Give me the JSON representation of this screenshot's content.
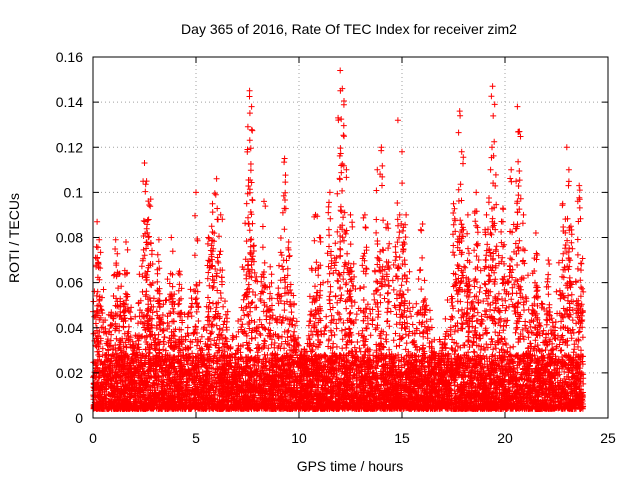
{
  "chart_data": {
    "type": "scatter",
    "title": "Day 365 of 2016, Rate Of TEC Index for receiver zim2",
    "xlabel": "GPS time / hours",
    "ylabel": "ROTI / TECUs",
    "xlim": [
      0,
      25
    ],
    "ylim": [
      0,
      0.16
    ],
    "x_ticks": [
      0,
      5,
      10,
      15,
      20,
      25
    ],
    "x_tick_labels": [
      "0",
      "5",
      "10",
      "15",
      "20",
      "25"
    ],
    "y_ticks": [
      0,
      0.02,
      0.04,
      0.06,
      0.08,
      0.1,
      0.12,
      0.14,
      0.16
    ],
    "y_tick_labels": [
      "0",
      "0.02",
      "0.04",
      "0.06",
      "0.08",
      "0.1",
      "0.12",
      "0.14",
      "0.16"
    ],
    "grid": true,
    "marker": "+",
    "color": "#ff0000",
    "data_x_range": [
      0,
      23.8
    ],
    "series": [
      {
        "name": "ROTI",
        "description_of_points": "dense cloud of ROTI samples, mostly 0.005-0.03 TECU/min, with spikes",
        "spikes": [
          {
            "x": 0.2,
            "y": 0.087
          },
          {
            "x": 0.3,
            "y": 0.079
          },
          {
            "x": 1.1,
            "y": 0.079
          },
          {
            "x": 1.3,
            "y": 0.064
          },
          {
            "x": 1.6,
            "y": 0.078
          },
          {
            "x": 2.5,
            "y": 0.113
          },
          {
            "x": 2.6,
            "y": 0.105
          },
          {
            "x": 2.7,
            "y": 0.088
          },
          {
            "x": 2.8,
            "y": 0.097
          },
          {
            "x": 3.2,
            "y": 0.079
          },
          {
            "x": 3.8,
            "y": 0.08
          },
          {
            "x": 4.2,
            "y": 0.065
          },
          {
            "x": 5.0,
            "y": 0.1
          },
          {
            "x": 5.6,
            "y": 0.08
          },
          {
            "x": 5.8,
            "y": 0.095
          },
          {
            "x": 6.0,
            "y": 0.106
          },
          {
            "x": 6.2,
            "y": 0.09
          },
          {
            "x": 7.5,
            "y": 0.119
          },
          {
            "x": 7.6,
            "y": 0.145
          },
          {
            "x": 7.7,
            "y": 0.138
          },
          {
            "x": 8.3,
            "y": 0.096
          },
          {
            "x": 8.6,
            "y": 0.067
          },
          {
            "x": 9.3,
            "y": 0.115
          },
          {
            "x": 9.5,
            "y": 0.078
          },
          {
            "x": 10.8,
            "y": 0.09
          },
          {
            "x": 11.0,
            "y": 0.08
          },
          {
            "x": 11.5,
            "y": 0.1
          },
          {
            "x": 11.9,
            "y": 0.133
          },
          {
            "x": 12.0,
            "y": 0.154
          },
          {
            "x": 12.1,
            "y": 0.146
          },
          {
            "x": 12.3,
            "y": 0.11
          },
          {
            "x": 12.5,
            "y": 0.09
          },
          {
            "x": 13.2,
            "y": 0.09
          },
          {
            "x": 13.8,
            "y": 0.11
          },
          {
            "x": 14.0,
            "y": 0.12
          },
          {
            "x": 14.3,
            "y": 0.086
          },
          {
            "x": 14.8,
            "y": 0.132
          },
          {
            "x": 15.0,
            "y": 0.118
          },
          {
            "x": 15.2,
            "y": 0.09
          },
          {
            "x": 16.0,
            "y": 0.086
          },
          {
            "x": 17.5,
            "y": 0.095
          },
          {
            "x": 17.8,
            "y": 0.136
          },
          {
            "x": 17.9,
            "y": 0.118
          },
          {
            "x": 18.2,
            "y": 0.09
          },
          {
            "x": 18.6,
            "y": 0.1
          },
          {
            "x": 19.1,
            "y": 0.09
          },
          {
            "x": 19.3,
            "y": 0.11
          },
          {
            "x": 19.4,
            "y": 0.147
          },
          {
            "x": 19.5,
            "y": 0.139
          },
          {
            "x": 19.9,
            "y": 0.093
          },
          {
            "x": 20.3,
            "y": 0.11
          },
          {
            "x": 20.6,
            "y": 0.138
          },
          {
            "x": 20.7,
            "y": 0.127
          },
          {
            "x": 20.9,
            "y": 0.09
          },
          {
            "x": 21.5,
            "y": 0.082
          },
          {
            "x": 22.1,
            "y": 0.07
          },
          {
            "x": 22.8,
            "y": 0.095
          },
          {
            "x": 23.0,
            "y": 0.12
          },
          {
            "x": 23.1,
            "y": 0.11
          },
          {
            "x": 23.2,
            "y": 0.085
          },
          {
            "x": 23.6,
            "y": 0.103
          }
        ]
      }
    ]
  }
}
